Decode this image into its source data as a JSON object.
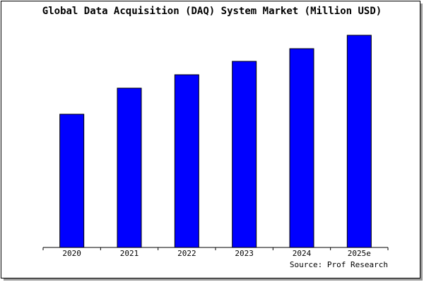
{
  "chart_data": {
    "type": "bar",
    "title": "Global Data Acquisition (DAQ) System Market (Million USD)",
    "categories": [
      "2020",
      "2021",
      "2022",
      "2023",
      "2024",
      "2025e"
    ],
    "values": [
      189,
      226,
      245,
      264,
      282,
      301
    ],
    "color": "#0000ff",
    "source": "Source: Prof Research"
  }
}
